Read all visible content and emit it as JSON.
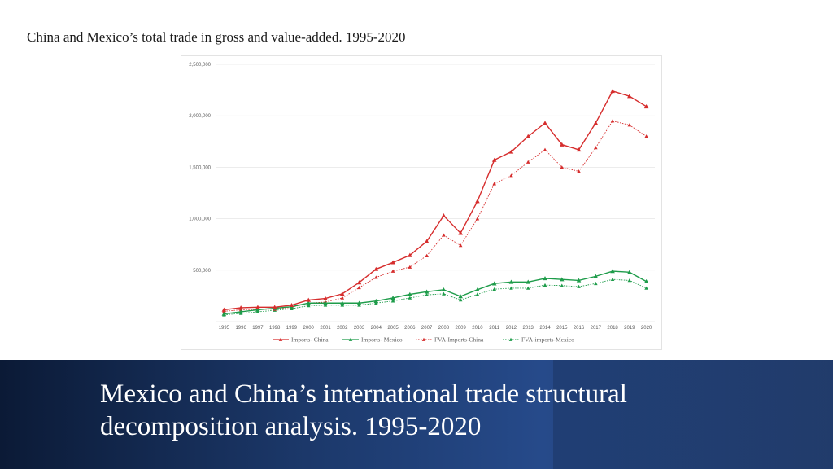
{
  "slide": {
    "title": "China and Mexico’s total trade in gross and value-added. 1995-2020",
    "banner_title": "Mexico and China’s international trade structural decomposition analysis. 1995-2020",
    "banner_color": "#1f3c72"
  },
  "chart_data": {
    "type": "line",
    "title": "",
    "xlabel": "",
    "ylabel": "",
    "x": [
      "1995",
      "1996",
      "1997",
      "1998",
      "1999",
      "2000",
      "2001",
      "2002",
      "2003",
      "2004",
      "2005",
      "2006",
      "2007",
      "2008",
      "2009",
      "2010",
      "2011",
      "2012",
      "2013",
      "2014",
      "2015",
      "2016",
      "2017",
      "2018",
      "2019",
      "2020"
    ],
    "ylim": [
      0,
      2500000
    ],
    "yticks": [
      {
        "value": 0,
        "label": "-"
      },
      {
        "value": 500000,
        "label": "500,000"
      },
      {
        "value": 1000000,
        "label": "1,000,000"
      },
      {
        "value": 1500000,
        "label": "1,500,000"
      },
      {
        "value": 2000000,
        "label": "2,000,000"
      },
      {
        "value": 2500000,
        "label": "2,500,000"
      }
    ],
    "grid": true,
    "legend_position": "bottom",
    "series": [
      {
        "name": "Imports- China",
        "color": "#d62d2d",
        "dash": false,
        "values": [
          115000,
          135000,
          140000,
          140000,
          160000,
          210000,
          225000,
          270000,
          380000,
          510000,
          575000,
          645000,
          780000,
          1030000,
          860000,
          1170000,
          1570000,
          1650000,
          1800000,
          1930000,
          1720000,
          1670000,
          1930000,
          2240000,
          2190000,
          2090000
        ]
      },
      {
        "name": "Imports- Mexico",
        "color": "#1e9c4a",
        "dash": false,
        "values": [
          75000,
          95000,
          115000,
          130000,
          145000,
          180000,
          180000,
          180000,
          180000,
          200000,
          230000,
          265000,
          290000,
          310000,
          245000,
          310000,
          370000,
          385000,
          385000,
          420000,
          410000,
          400000,
          440000,
          490000,
          480000,
          390000
        ]
      },
      {
        "name": "FVA-Imports-China",
        "color": "#d62d2d",
        "dash": true,
        "values": [
          100000,
          115000,
          120000,
          120000,
          140000,
          180000,
          190000,
          230000,
          330000,
          430000,
          490000,
          530000,
          640000,
          840000,
          740000,
          1000000,
          1340000,
          1420000,
          1550000,
          1670000,
          1500000,
          1460000,
          1690000,
          1950000,
          1910000,
          1800000
        ]
      },
      {
        "name": "FVA-imports-Mexico",
        "color": "#1e9c4a",
        "dash": true,
        "values": [
          65000,
          80000,
          95000,
          110000,
          125000,
          155000,
          160000,
          160000,
          160000,
          180000,
          200000,
          230000,
          260000,
          270000,
          210000,
          265000,
          315000,
          325000,
          325000,
          355000,
          350000,
          340000,
          370000,
          410000,
          400000,
          325000
        ]
      }
    ]
  }
}
